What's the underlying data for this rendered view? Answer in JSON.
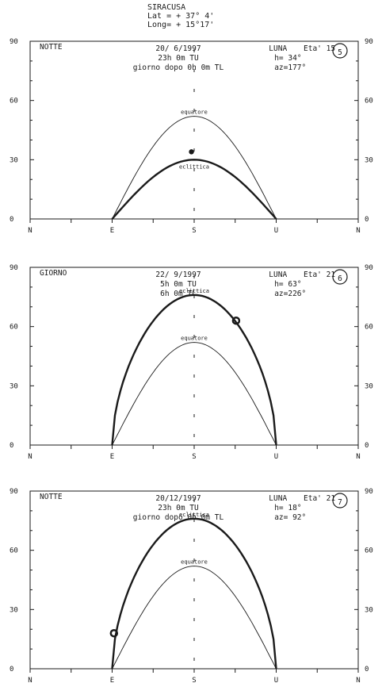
{
  "header": {
    "location": "SIRACUSA",
    "lat": "Lat = + 37° 4'",
    "long": "Long= + 15°17'"
  },
  "axis": {
    "y_ticks": [
      "90",
      "60",
      "30",
      "0"
    ],
    "x_ticks": [
      "N",
      "E",
      "S",
      "U",
      "N"
    ]
  },
  "curve_labels": {
    "equator": "equatore",
    "ecliptic": "eclittica"
  },
  "panels": [
    {
      "number": "5",
      "phase": "NOTTE",
      "date": "20/ 6/1997",
      "ut": "23h 0m TU",
      "tl": "giorno dopo 0h 0m TL",
      "body": "LUNA",
      "age": "Eta' 15",
      "alt": "h= 34°",
      "az": "az=177°",
      "equator_max_alt": 52,
      "ecliptic_max_alt": 30,
      "ecliptic_north": false,
      "moon": {
        "az": 177,
        "alt": 34
      }
    },
    {
      "number": "6",
      "phase": "GIORNO",
      "date": "22/ 9/1997",
      "ut": "5h 0m TU",
      "tl": "6h 0m TL",
      "body": "LUNA",
      "age": "Eta' 21",
      "alt": "h= 63°",
      "az": "az=226°",
      "equator_max_alt": 52,
      "ecliptic_max_alt": 76,
      "ecliptic_north": true,
      "moon": {
        "az": 226,
        "alt": 63
      }
    },
    {
      "number": "7",
      "phase": "NOTTE",
      "date": "20/12/1997",
      "ut": "23h 0m TU",
      "tl": "giorno dopo 0h 0m TL",
      "body": "LUNA",
      "age": "Eta' 21",
      "alt": "h= 18°",
      "az": "az= 92°",
      "equator_max_alt": 52,
      "ecliptic_max_alt": 76,
      "ecliptic_north": true,
      "moon": {
        "az": 92,
        "alt": 18
      }
    }
  ]
}
